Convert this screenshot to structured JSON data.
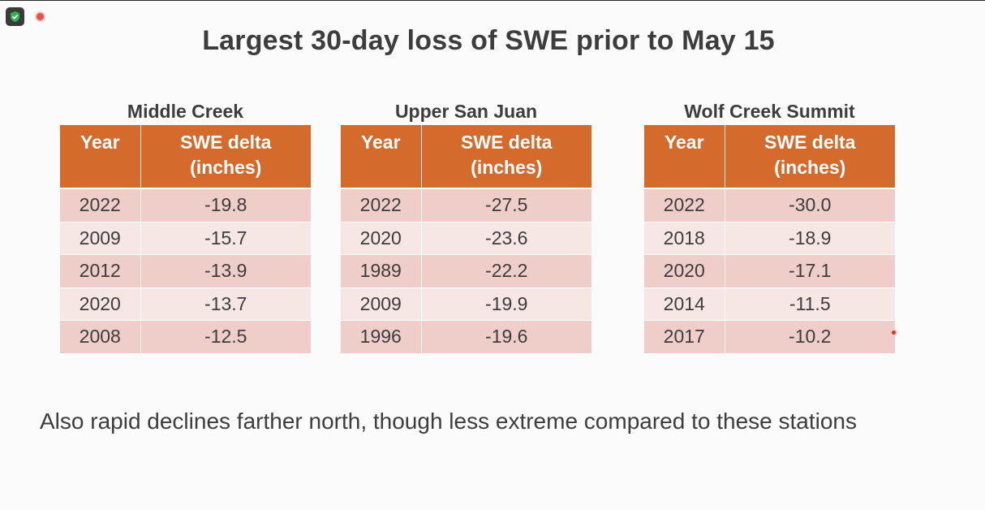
{
  "title": "Largest 30-day loss of SWE prior to May 15",
  "colors": {
    "header_bg": "#d46a2c",
    "row_odd": "#efcdc8",
    "row_even": "#f7e7e4",
    "text": "#3d3d3d"
  },
  "columns": {
    "year": "Year",
    "delta_line1": "SWE delta",
    "delta_line2": "(inches)"
  },
  "stations": [
    {
      "name": "Middle Creek",
      "rows": [
        {
          "year": "2022",
          "delta": "-19.8"
        },
        {
          "year": "2009",
          "delta": "-15.7"
        },
        {
          "year": "2012",
          "delta": "-13.9"
        },
        {
          "year": "2020",
          "delta": "-13.7"
        },
        {
          "year": "2008",
          "delta": "-12.5"
        }
      ]
    },
    {
      "name": "Upper San Juan",
      "rows": [
        {
          "year": "2022",
          "delta": "-27.5"
        },
        {
          "year": "2020",
          "delta": "-23.6"
        },
        {
          "year": "1989",
          "delta": "-22.2"
        },
        {
          "year": "2009",
          "delta": "-19.9"
        },
        {
          "year": "1996",
          "delta": "-19.6"
        }
      ]
    },
    {
      "name": "Wolf Creek Summit",
      "rows": [
        {
          "year": "2022",
          "delta": "-30.0"
        },
        {
          "year": "2018",
          "delta": "-18.9"
        },
        {
          "year": "2020",
          "delta": "-17.1"
        },
        {
          "year": "2014",
          "delta": "-11.5"
        },
        {
          "year": "2017",
          "delta": "-10.2"
        }
      ]
    }
  ],
  "footnote": "Also rapid declines farther north, though less extreme compared to these stations",
  "icons": {
    "security": "shield-check-icon",
    "recording": "recording-indicator-icon",
    "pointer": "laser-pointer-icon"
  }
}
